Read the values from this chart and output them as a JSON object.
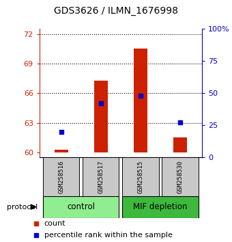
{
  "title": "GDS3626 / ILMN_1676998",
  "samples": [
    "GSM258516",
    "GSM258517",
    "GSM258515",
    "GSM258530"
  ],
  "bar_bottom": 60,
  "bar_tops": [
    60.25,
    67.3,
    70.5,
    61.55
  ],
  "percentile_values": [
    20,
    42,
    48,
    27
  ],
  "ylim_left": [
    59.5,
    72.5
  ],
  "ylim_right": [
    0,
    100
  ],
  "yticks_left": [
    60,
    63,
    66,
    69,
    72
  ],
  "yticks_right": [
    0,
    25,
    50,
    75,
    100
  ],
  "ytick_labels_right": [
    "0",
    "25",
    "50",
    "75",
    "100%"
  ],
  "bar_color": "#cc2200",
  "percentile_color": "#0000cc",
  "bar_width": 0.35,
  "sample_box_color": "#c8c8c8",
  "control_group_color": "#90ee90",
  "mif_group_color": "#3dba3d",
  "protocol_label": "protocol",
  "legend_count_label": "count",
  "legend_percentile_label": "percentile rank within the sample",
  "left_axis_color": "#cc2200",
  "right_axis_color": "#0000cc"
}
